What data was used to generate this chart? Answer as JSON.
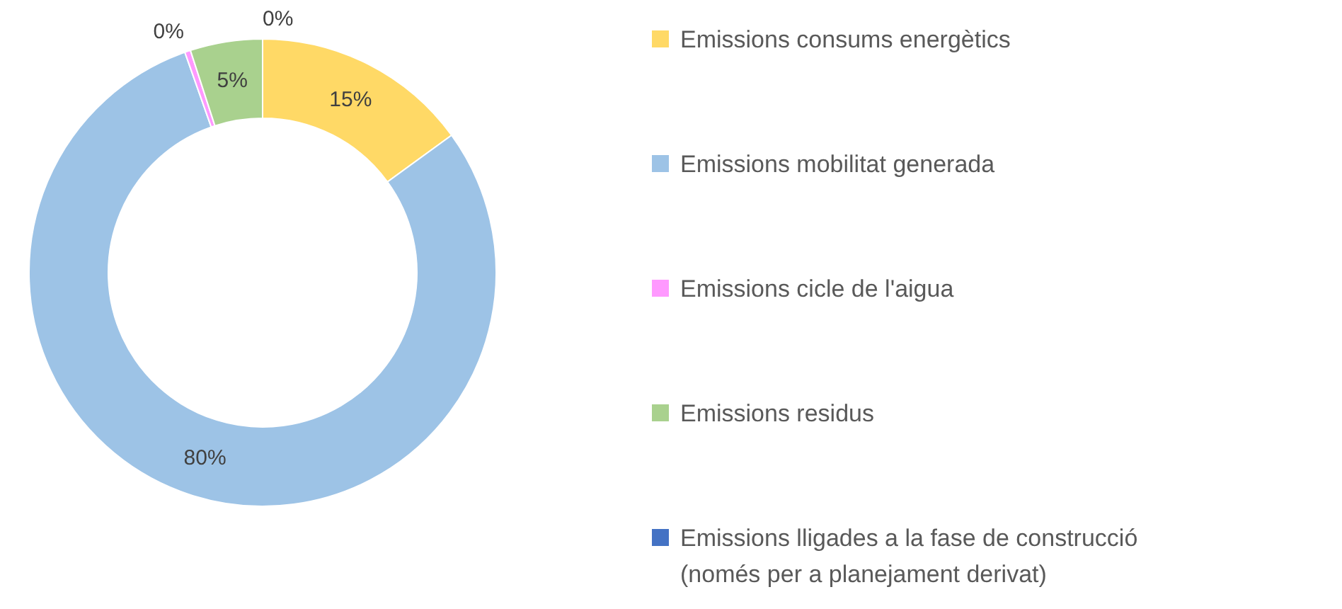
{
  "chart_data": {
    "type": "donut",
    "categories": [
      "Emissions consums energètics",
      "Emissions mobilitat generada",
      "Emissions cicle de l'aigua",
      "Emissions residus",
      "Emissions lligades a la fase de construcció (només per a planejament derivat)"
    ],
    "values": [
      15,
      79.6,
      0.4,
      5,
      0
    ],
    "value_labels": [
      "15%",
      "80%",
      "0%",
      "5%",
      "0%"
    ],
    "colors": [
      "#ffd966",
      "#9dc3e6",
      "#ff99ff",
      "#a9d18e",
      "#4472c4"
    ],
    "legend": "right"
  }
}
